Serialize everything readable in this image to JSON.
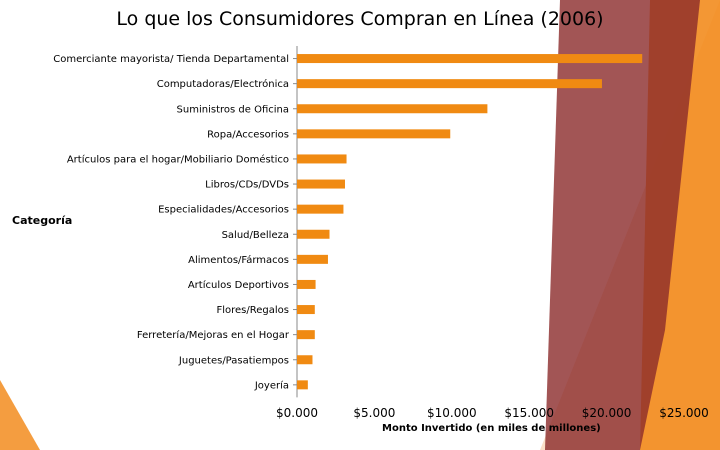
{
  "title": "Lo que los Consumidores Compran en Línea (2006)",
  "colors": {
    "bar": "#f08a12",
    "deco_dark": "#8b2a2a",
    "deco_orange": "#f28c1e",
    "deco_light": "#f6c79a"
  },
  "chart_data": {
    "type": "bar",
    "orientation": "horizontal",
    "title": "Lo que los Consumidores Compran en Línea (2006)",
    "xlabel": "Monto Invertido (en miles de millones)",
    "ylabel": "Categoría",
    "xlim": [
      0,
      25000
    ],
    "xticks": [
      "$0.000",
      "$5.000",
      "$10.000",
      "$15.000",
      "$20.000",
      "$25.000"
    ],
    "xtick_values": [
      0,
      5000,
      10000,
      15000,
      20000,
      25000
    ],
    "categories": [
      "Comerciante mayorista/ Tienda Departamental",
      "Computadoras/Electrónica",
      "Suministros de Oficina",
      "Ropa/Accesorios",
      "Artículos para el hogar/Mobiliario Doméstico",
      "Libros/CDs/DVDs",
      "Especialidades/Accesorios",
      "Salud/Belleza",
      "Alimentos/Fármacos",
      "Artículos Deportivos",
      "Flores/Regalos",
      "Ferretería/Mejoras en el Hogar",
      "Juguetes/Pasatiempos",
      "Joyería"
    ],
    "values": [
      22300,
      19700,
      12300,
      9900,
      3200,
      3100,
      3000,
      2100,
      2000,
      1200,
      1150,
      1150,
      1000,
      700
    ],
    "grid": false,
    "legend": "none"
  }
}
